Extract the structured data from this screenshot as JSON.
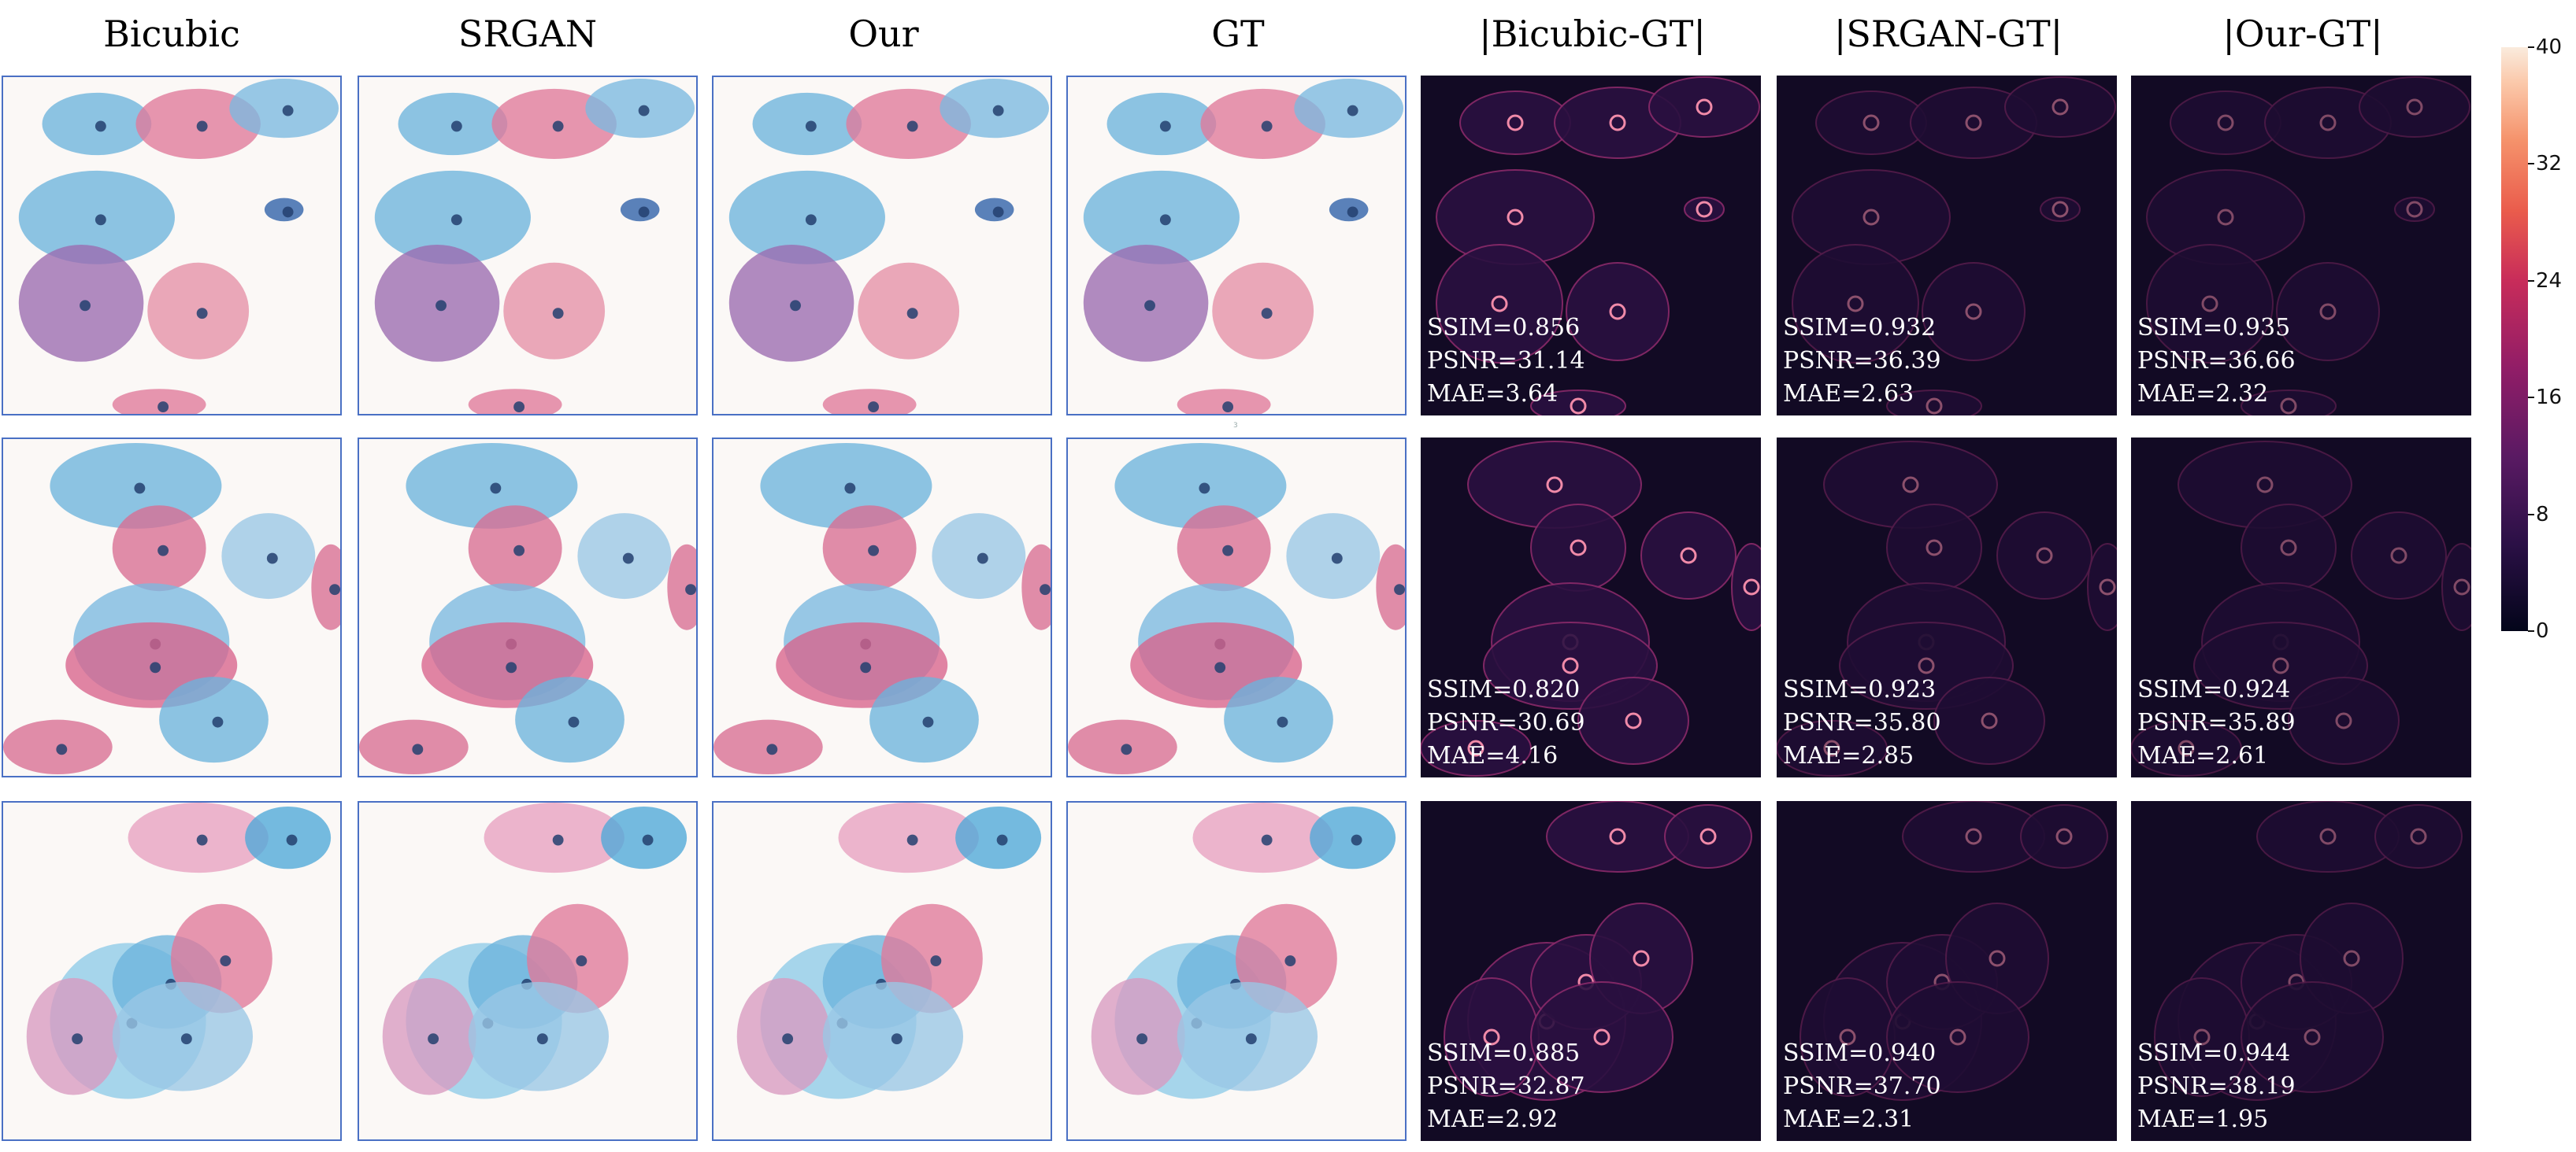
{
  "column_titles": [
    "Bicubic",
    "SRGAN",
    "Our",
    "GT",
    "|Bicubic-GT|",
    "|SRGAN-GT|",
    "|Our-GT|"
  ],
  "rows": [
    {
      "metrics": [
        {
          "ssim": "SSIM=0.856",
          "psnr": "PSNR=31.14",
          "mae": "MAE=3.64"
        },
        {
          "ssim": "SSIM=0.932",
          "psnr": "PSNR=36.39",
          "mae": "MAE=2.63"
        },
        {
          "ssim": "SSIM=0.935",
          "psnr": "PSNR=36.66",
          "mae": "MAE=2.32"
        }
      ]
    },
    {
      "metrics": [
        {
          "ssim": "SSIM=0.820",
          "psnr": "PSNR=30.69",
          "mae": "MAE=4.16"
        },
        {
          "ssim": "SSIM=0.923",
          "psnr": "PSNR=35.80",
          "mae": "MAE=2.85"
        },
        {
          "ssim": "SSIM=0.924",
          "psnr": "PSNR=35.89",
          "mae": "MAE=2.61"
        }
      ]
    },
    {
      "metrics": [
        {
          "ssim": "SSIM=0.885",
          "psnr": "PSNR=32.87",
          "mae": "MAE=2.92"
        },
        {
          "ssim": "SSIM=0.940",
          "psnr": "PSNR=37.70",
          "mae": "MAE=2.31"
        },
        {
          "ssim": "SSIM=0.944",
          "psnr": "PSNR=38.19",
          "mae": "MAE=1.95"
        }
      ]
    }
  ],
  "colorbar": {
    "ticks": [
      "40",
      "32",
      "24",
      "16",
      "8",
      "0"
    ],
    "min": 0,
    "max": 40
  },
  "stray_mark": "3",
  "colors": {
    "panel_border": "#4a70c4",
    "diff_background": "#120a24",
    "cell_pink": "#e0789a",
    "cell_blue": "#6db4dc"
  }
}
